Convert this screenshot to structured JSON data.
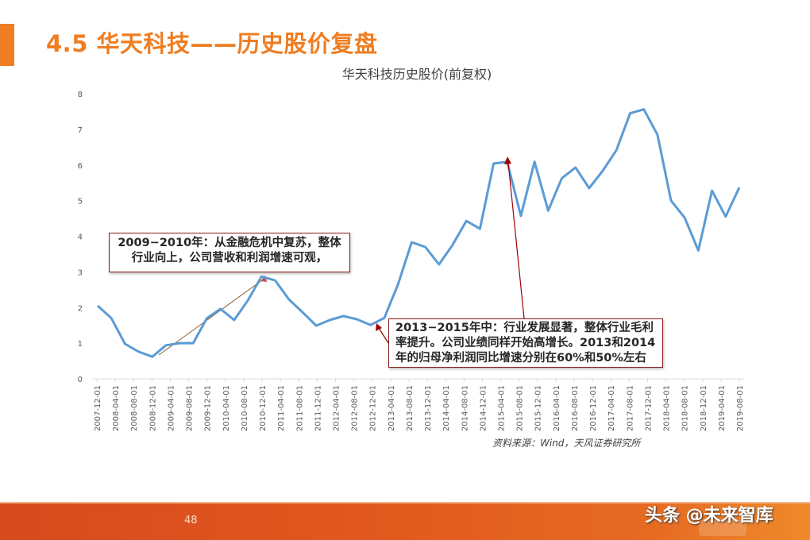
{
  "page": {
    "section_title": "4.5 华天科技——历史股价复盘",
    "page_number": "48",
    "watermark": "头条 @未来智库",
    "accent_color": "#ef7d22"
  },
  "chart": {
    "title": "华天科技历史股价(前复权)",
    "source": "资料来源：Wind，天风证券研究所",
    "line_color": "#5b9bd5",
    "callouts": [
      {
        "text": "2009−2010年：从金融危机中复苏，整体行业向上，公司营收和利润增速可观，"
      },
      {
        "text": "2013−2015年中：行业发展显著，整体行业毛利率提升。公司业绩同样开始高增长。2013和2014年的归母净利润同比增速分别在60%和50%左右"
      }
    ]
  },
  "chart_data": {
    "type": "line",
    "title": "华天科技历史股价(前复权)",
    "xlabel": "",
    "ylabel": "",
    "ylim": [
      0,
      8
    ],
    "yticks": [
      0,
      1,
      2,
      3,
      4,
      5,
      6,
      7,
      8
    ],
    "grid": false,
    "legend": "none",
    "tick_labels": [
      "2007-12-01",
      "2008-04-01",
      "2008-08-01",
      "2008-12-01",
      "2009-04-01",
      "2009-08-01",
      "2009-12-01",
      "2010-04-01",
      "2010-08-01",
      "2010-12-01",
      "2011-04-01",
      "2011-08-01",
      "2011-12-01",
      "2012-04-01",
      "2012-08-01",
      "2012-12-01",
      "2013-04-01",
      "2013-08-01",
      "2013-12-01",
      "2014-04-01",
      "2014-08-01",
      "2014-12-01",
      "2015-04-01",
      "2015-08-01",
      "2015-12-01",
      "2016-04-01",
      "2016-08-01",
      "2016-12-01",
      "2017-04-01",
      "2017-08-01",
      "2017-12-01",
      "2018-04-01",
      "2018-08-01",
      "2018-12-01",
      "2019-04-01",
      "2019-08-01"
    ],
    "series": [
      {
        "name": "华天科技股价(前复权)",
        "frequency": "quarterly",
        "values": [
          2.05,
          1.7,
          0.98,
          0.76,
          0.62,
          0.94,
          1.0,
          1.0,
          1.7,
          1.96,
          1.65,
          2.2,
          2.87,
          2.76,
          2.23,
          1.87,
          1.49,
          1.65,
          1.76,
          1.67,
          1.51,
          1.71,
          2.65,
          3.83,
          3.7,
          3.21,
          3.76,
          4.43,
          4.21,
          6.04,
          6.09,
          4.57,
          6.09,
          4.72,
          5.63,
          5.93,
          5.35,
          5.84,
          6.42,
          7.45,
          7.56,
          6.85,
          5.0,
          4.52,
          3.6,
          5.28,
          4.55,
          5.37
        ]
      }
    ],
    "annotations": [
      "2009−2010年：从金融危机中复苏，整体行业向上，公司营收和利润增速可观，",
      "2013−2015年中：行业发展显著，整体行业毛利率提升。公司业绩同样开始高增长。2013和2014年的归母净利润同比增速分别在60%和50%左右"
    ],
    "source": "资料来源：Wind，天风证券研究所"
  }
}
